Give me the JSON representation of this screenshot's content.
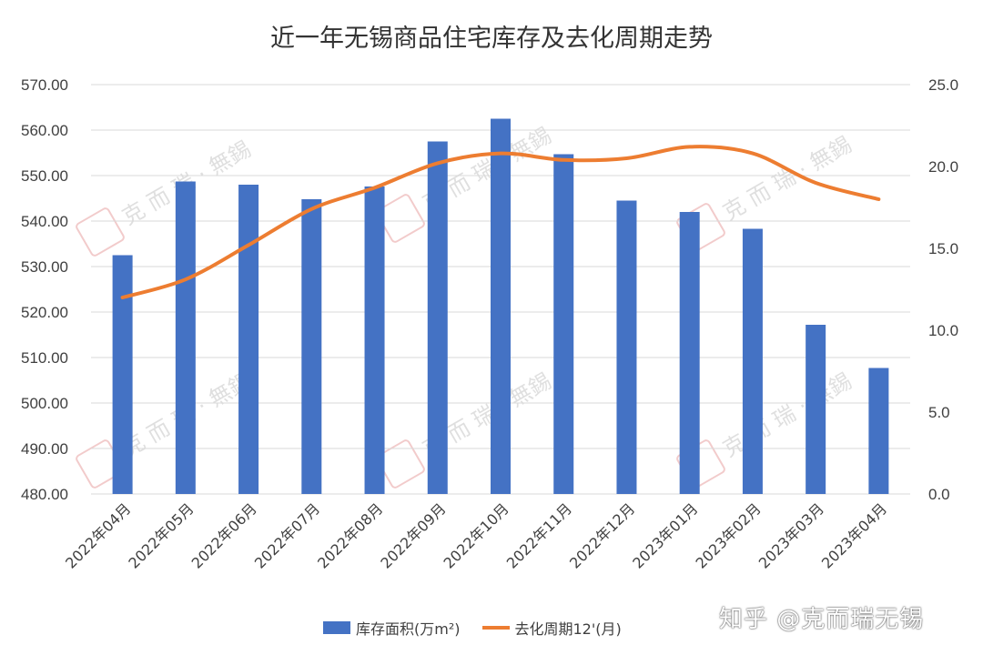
{
  "chart_data": {
    "type": "bar+line",
    "title": "近一年无锡商品住宅库存及去化周期走势",
    "categories": [
      "2022年04月",
      "2022年05月",
      "2022年06月",
      "2022年07月",
      "2022年08月",
      "2022年09月",
      "2022年10月",
      "2022年11月",
      "2022年12月",
      "2023年01月",
      "2023年02月",
      "2023年03月",
      "2023年04月"
    ],
    "series": [
      {
        "name": "库存面积(万m²)",
        "type": "bar",
        "axis": "left",
        "color": "#4472C4",
        "values": [
          532.5,
          548.7,
          548.0,
          544.8,
          547.6,
          557.5,
          562.5,
          554.7,
          544.5,
          542.0,
          538.3,
          517.2,
          507.7
        ]
      },
      {
        "name": "去化周期12'(月)",
        "type": "line",
        "axis": "right",
        "color": "#ED7D31",
        "values": [
          12.0,
          13.1,
          15.2,
          17.4,
          18.7,
          20.2,
          20.8,
          20.4,
          20.5,
          21.2,
          20.8,
          19.0,
          18.0
        ]
      }
    ],
    "y_left": {
      "min": 480,
      "max": 570,
      "step": 10,
      "tick_labels": [
        "480.00",
        "490.00",
        "500.00",
        "510.00",
        "520.00",
        "530.00",
        "540.00",
        "550.00",
        "560.00",
        "570.00"
      ]
    },
    "y_right": {
      "min": 0,
      "max": 25,
      "step": 5,
      "tick_labels": [
        "0.0",
        "5.0",
        "10.0",
        "15.0",
        "20.0",
        "25.0"
      ]
    },
    "grid": true,
    "legend_position": "bottom"
  },
  "watermark_text": "知乎 @克而瑞无锡",
  "background_watermark": "克 而 瑞 · 無錫"
}
